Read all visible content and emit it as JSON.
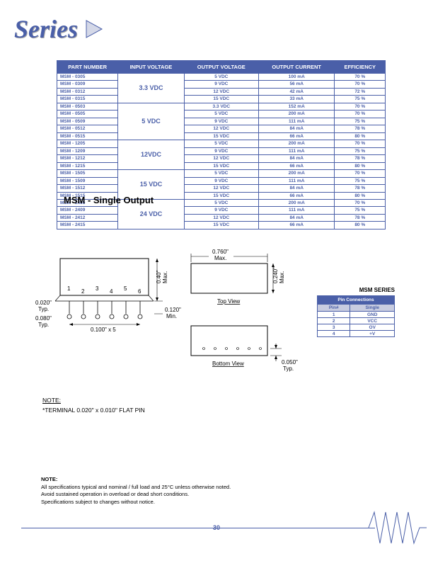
{
  "header": {
    "title": "Series"
  },
  "spec_table": {
    "headers": [
      "PART NUMBER",
      "INPUT VOLTAGE",
      "OUTPUT VOLTAGE",
      "OUTPUT CURRENT",
      "EFFICIENCY"
    ],
    "groups": [
      {
        "input": "3.3 VDC",
        "rows": [
          [
            "MSM - 0305",
            "5 VDC",
            "100 mA",
            "70 %"
          ],
          [
            "MSM - 0309",
            "9 VDC",
            "56 mA",
            "70 %"
          ],
          [
            "MSM - 0312",
            "12 VDC",
            "42 mA",
            "72 %"
          ],
          [
            "MSM - 0315",
            "15 VDC",
            "33 mA",
            "75 %"
          ]
        ]
      },
      {
        "input": "5 VDC",
        "rows": [
          [
            "MSM - 0503",
            "3.3 VDC",
            "152 mA",
            "70 %"
          ],
          [
            "MSM - 0505",
            "5 VDC",
            "200 mA",
            "70 %"
          ],
          [
            "MSM - 0509",
            "9 VDC",
            "111 mA",
            "75 %"
          ],
          [
            "MSM - 0512",
            "12 VDC",
            "84 mA",
            "78 %"
          ],
          [
            "MSM - 0515",
            "15 VDC",
            "66 mA",
            "80 %"
          ]
        ]
      },
      {
        "input": "12VDC",
        "rows": [
          [
            "MSM - 1205",
            "5 VDC",
            "200 mA",
            "70 %"
          ],
          [
            "MSM - 1209",
            "9 VDC",
            "111 mA",
            "75 %"
          ],
          [
            "MSM - 1212",
            "12 VDC",
            "84 mA",
            "78 %"
          ],
          [
            "MSM - 1215",
            "15 VDC",
            "66 mA",
            "80 %"
          ]
        ]
      },
      {
        "input": "15 VDC",
        "rows": [
          [
            "MSM - 1505",
            "5 VDC",
            "200 mA",
            "70 %"
          ],
          [
            "MSM - 1509",
            "9 VDC",
            "111 mA",
            "75 %"
          ],
          [
            "MSM - 1512",
            "12 VDC",
            "84 mA",
            "78 %"
          ],
          [
            "MSM - 1515",
            "15 VDC",
            "66 mA",
            "80 %"
          ]
        ]
      },
      {
        "input": "24 VDC",
        "rows": [
          [
            "MSM - 2405",
            "5 VDC",
            "200 mA",
            "70 %"
          ],
          [
            "MSM - 2409",
            "9 VDC",
            "111 mA",
            "75 %"
          ],
          [
            "MSM - 2412",
            "12 VDC",
            "84 mA",
            "78 %"
          ],
          [
            "MSM - 2415",
            "15 VDC",
            "66 mA",
            "80 %"
          ]
        ]
      }
    ]
  },
  "section_title": "MSM - Single Output",
  "diagram": {
    "top_view": "Top View",
    "bottom_view": "Bottom View",
    "dims": {
      "width": "0.760\"",
      "width_suffix": "Max.",
      "h1": "0.40\"",
      "h1_suffix": "Max.",
      "h2": "0.240\"",
      "h2_suffix": "Max.",
      "pin_l": "0.120\"",
      "pin_l_suffix": "Min.",
      "pin_sp": "0.100\" x 5",
      "edge1": "0.020\"",
      "edge1_suffix": "Typ.",
      "edge2": "0.080\"",
      "edge2_suffix": "Typ.",
      "bot": "0.050\"",
      "bot_suffix": "Typ."
    },
    "pins": [
      "1",
      "2",
      "3",
      "4",
      "5",
      "6"
    ]
  },
  "note_terminal": {
    "label": "NOTE:",
    "text": "*TERMINAL   0.020\" x 0.010\" FLAT PIN"
  },
  "pin_connections": {
    "series_label": "MSM SERIES",
    "header": "Pin Connections",
    "cols": [
      "Pin#",
      "Single"
    ],
    "rows": [
      [
        "1",
        "GND"
      ],
      [
        "2",
        "VCC"
      ],
      [
        "3",
        "OV"
      ],
      [
        "4",
        "+V"
      ]
    ]
  },
  "footer": {
    "head": "NOTE:",
    "l1": "All specifications typical and nominal / full load and 25°C unless otherwise noted.",
    "l2": "Avoid sustained operation in overload or dead short conditions.",
    "l3": "Specifications subject to changes without notice."
  },
  "page_number": "30",
  "colors": {
    "brand": "#4a5fa8",
    "fill": "#d4d8e8",
    "light": "#c8cce0"
  }
}
